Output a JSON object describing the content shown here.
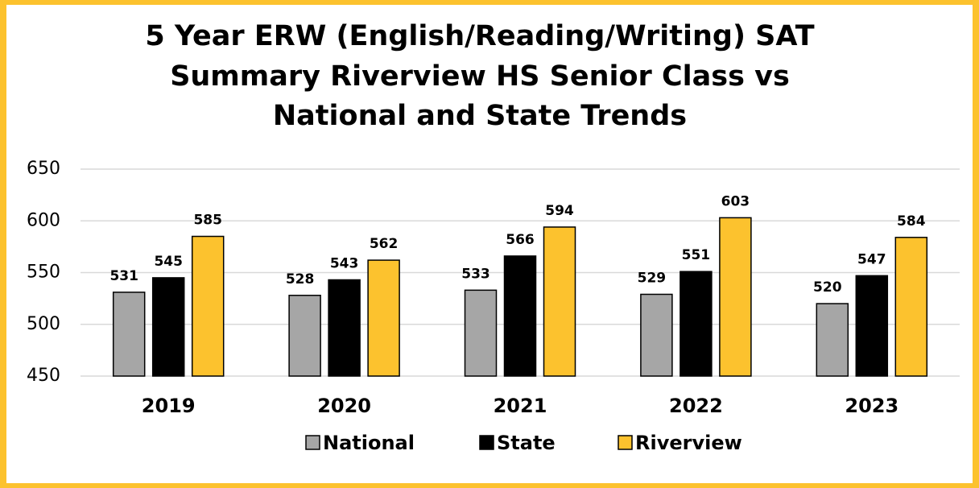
{
  "chart_data": {
    "type": "bar",
    "title": [
      "5 Year ERW (English/Reading/Writing) SAT",
      "Summary Riverview HS Senior Class vs",
      "National and State Trends"
    ],
    "categories": [
      "2019",
      "2020",
      "2021",
      "2022",
      "2023"
    ],
    "series": [
      {
        "name": "National",
        "color": "#a6a6a6",
        "values": [
          531,
          528,
          533,
          529,
          520
        ]
      },
      {
        "name": "State",
        "color": "#000000",
        "values": [
          545,
          543,
          566,
          551,
          547
        ]
      },
      {
        "name": "Riverview",
        "color": "#fcc22e",
        "values": [
          585,
          562,
          594,
          603,
          584
        ]
      }
    ],
    "ylim": [
      450,
      650
    ],
    "yticks": [
      450,
      500,
      550,
      600,
      650
    ],
    "grid": true,
    "legend": "bottom"
  }
}
